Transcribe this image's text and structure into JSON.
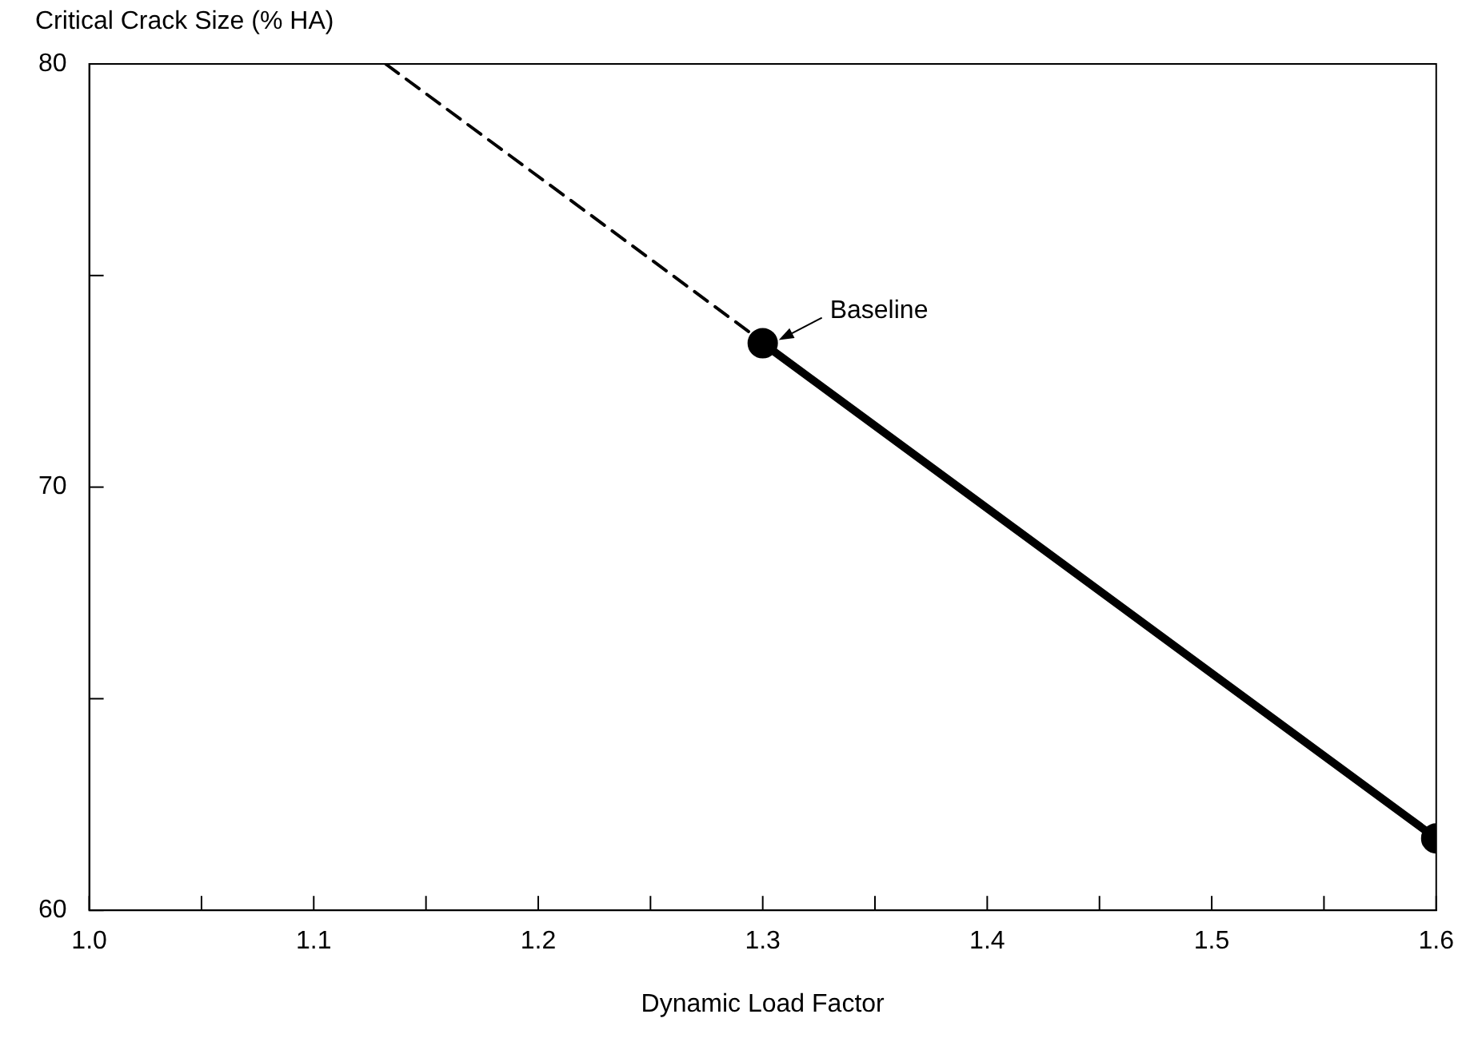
{
  "chart_data": {
    "type": "line",
    "xlabel": "Dynamic Load Factor",
    "ylabel": "Critical Crack Size (% HA)",
    "xlim": [
      1.0,
      1.6
    ],
    "xticks": [
      "1.0",
      {
        "value": 1.05,
        "label": null
      },
      1.1,
      {
        "value": 1.15,
        "label": null
      },
      1.2,
      {
        "value": 1.25,
        "label": null
      },
      1.3,
      {
        "value": 1.35,
        "label": null
      },
      1.4,
      {
        "value": 1.45,
        "label": null
      },
      1.5,
      {
        "value": 1.55,
        "label": null
      },
      1.6
    ],
    "ylim": [
      60,
      80
    ],
    "yticks": [
      60,
      {
        "value": 65,
        "label": null
      },
      70,
      {
        "value": 75,
        "label": null
      },
      80
    ],
    "grid": false,
    "legend": false,
    "series": [
      {
        "color": "#000000",
        "x": [
          1.132,
          1.6
        ],
        "values": [
          80,
          61.7
        ],
        "line_style": "dashed"
      },
      {
        "color": "#000000",
        "x": [
          1.3,
          1.6
        ],
        "values": [
          73.4,
          61.7
        ],
        "line_style": "solid",
        "marker": "circle"
      }
    ],
    "annotations": [
      {
        "text": "Baseline",
        "x": 1.3,
        "y": 73.4
      }
    ]
  }
}
